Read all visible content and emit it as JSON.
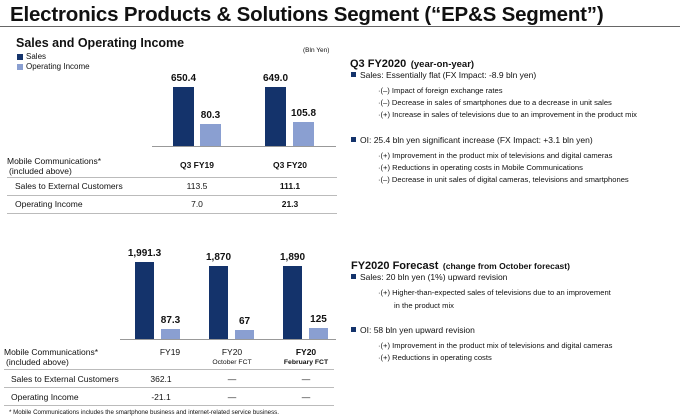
{
  "title": "Electronics Products & Solutions Segment (“EP&S Segment”)",
  "colors": {
    "sales": "#14336b",
    "oi": "#8a9fd1"
  },
  "top": {
    "heading": "Sales and Operating Income",
    "unit": "(Bln Yen)",
    "legend": {
      "sales": "Sales",
      "oi": "Operating Income"
    },
    "table": {
      "label1": "Mobile Communications*",
      "label2": "(included above)",
      "cols": [
        "Q3 FY19",
        "Q3 FY20"
      ],
      "rows": [
        {
          "label": "Sales to External Customers",
          "values": [
            "113.5",
            "111.1"
          ]
        },
        {
          "label": "Operating Income",
          "values": [
            "7.0",
            "21.3"
          ]
        }
      ]
    }
  },
  "bottom": {
    "table": {
      "label1": "Mobile Communications*",
      "label2": "(included above)",
      "cols": [
        {
          "l1": "FY19",
          "l2": ""
        },
        {
          "l1": "FY20",
          "l2": "October FCT"
        },
        {
          "l1": "FY20",
          "l2": "February FCT"
        }
      ],
      "rows": [
        {
          "label": "Sales to External Customers",
          "values": [
            "362.1",
            "—",
            "—"
          ]
        },
        {
          "label": "Operating Income",
          "values": [
            "-21.1",
            "—",
            "—"
          ]
        }
      ]
    },
    "footnote": "* Mobile Communications includes the smartphone business and internet-related service business."
  },
  "chart_data": [
    {
      "type": "bar",
      "title": "Sales and Operating Income",
      "ylabel": "Bln Yen",
      "categories": [
        "Q3 FY19",
        "Q3 FY20"
      ],
      "series": [
        {
          "name": "Sales",
          "values": [
            650.4,
            649.0
          ],
          "labels": [
            "650.4",
            "649.0"
          ]
        },
        {
          "name": "Operating Income",
          "values": [
            80.3,
            105.8
          ],
          "labels": [
            "80.3",
            "105.8"
          ]
        }
      ]
    },
    {
      "type": "bar",
      "categories": [
        "FY19",
        "FY20 October FCT",
        "FY20 February FCT"
      ],
      "series": [
        {
          "name": "Sales",
          "values": [
            1991.3,
            1870,
            1890
          ],
          "labels": [
            "1,991.3",
            "1,870",
            "1,890"
          ]
        },
        {
          "name": "Operating Income",
          "values": [
            87.3,
            67,
            125
          ],
          "labels": [
            "87.3",
            "67",
            "125"
          ]
        }
      ]
    }
  ],
  "q3": {
    "heading": "Q3 FY2020",
    "heading_sub": "(year-on-year)",
    "bullets": [
      {
        "text": "Sales: Essentially flat (FX Impact: -8.9 bln yen)",
        "subs": [
          "·(–) Impact of foreign exchange rates",
          "·(–) Decrease in sales of smartphones due to a decrease in unit sales",
          "·(+) Increase in sales of televisions due to an improvement in the product mix"
        ]
      },
      {
        "text": "OI: 25.4 bln yen significant increase (FX Impact: +3.1 bln yen)",
        "subs": [
          "·(+) Improvement in the product mix of televisions and digital cameras",
          "·(+) Reductions in operating costs in Mobile Communications",
          "·(–) Decrease in unit sales of digital cameras, televisions and smartphones"
        ]
      }
    ]
  },
  "fc": {
    "heading": "FY2020 Forecast",
    "heading_sub": "(change from October forecast)",
    "bullets": [
      {
        "text": "Sales: 20 bln yen (1%) upward revision",
        "subs": [
          "·(+) Higher-than-expected sales of televisions due to an improvement",
          "in the product mix"
        ]
      },
      {
        "text": "OI: 58 bln yen upward revision",
        "subs": [
          "·(+) Improvement in the product mix of televisions and digital cameras",
          "·(+) Reductions in operating costs"
        ]
      }
    ]
  }
}
